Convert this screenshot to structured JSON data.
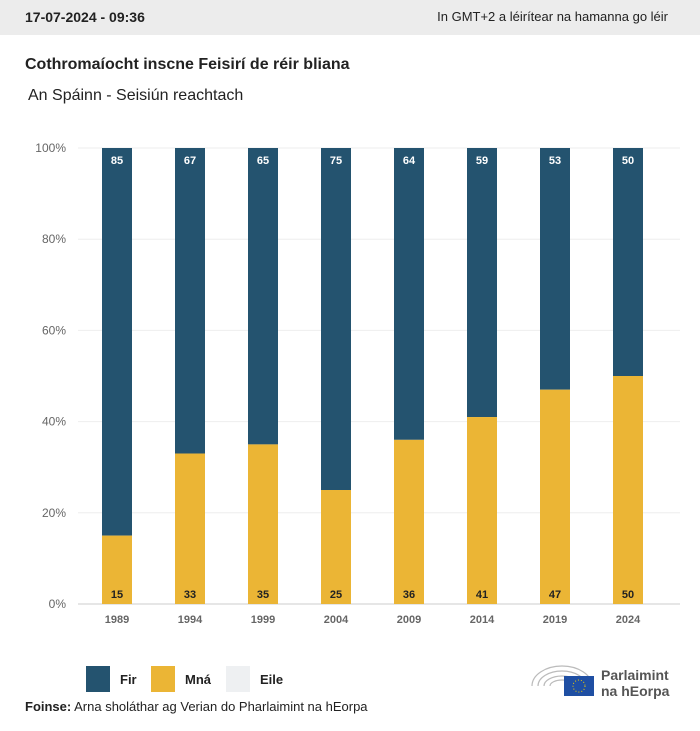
{
  "header": {
    "date": "17-07-2024 - 09:36",
    "timezone_note": "In GMT+2 a léirítear na hamanna go léir"
  },
  "colors": {
    "fir": "#24536f",
    "mna": "#ebb535",
    "eile": "#eef0f2"
  },
  "chart_data": {
    "type": "bar",
    "stacked": true,
    "title": "Cothromaíocht inscne Feisirí de réir bliana",
    "subtitle": "An Spáinn - Seisiún reachtach",
    "categories": [
      "1989",
      "1994",
      "1999",
      "2004",
      "2009",
      "2014",
      "2019",
      "2024"
    ],
    "series": [
      {
        "name": "Mná",
        "values": [
          15,
          33,
          35,
          25,
          36,
          41,
          47,
          50
        ]
      },
      {
        "name": "Fir",
        "values": [
          85,
          67,
          65,
          75,
          64,
          59,
          53,
          50
        ]
      },
      {
        "name": "Eile",
        "values": [
          0,
          0,
          0,
          0,
          0,
          0,
          0,
          0
        ]
      }
    ],
    "yticks": [
      "0%",
      "20%",
      "40%",
      "60%",
      "80%",
      "100%"
    ],
    "ylim": [
      0,
      100
    ],
    "legend": "bottom-left"
  },
  "legend": [
    {
      "label": "Fir"
    },
    {
      "label": "Mná"
    },
    {
      "label": "Eile"
    }
  ],
  "source": {
    "label": "Foinse:",
    "text": " Arna sholáthar ag Verian do Pharlaimint na hEorpa"
  },
  "logo": {
    "line1": "Parlaimint",
    "line2": "na hEorpa"
  }
}
